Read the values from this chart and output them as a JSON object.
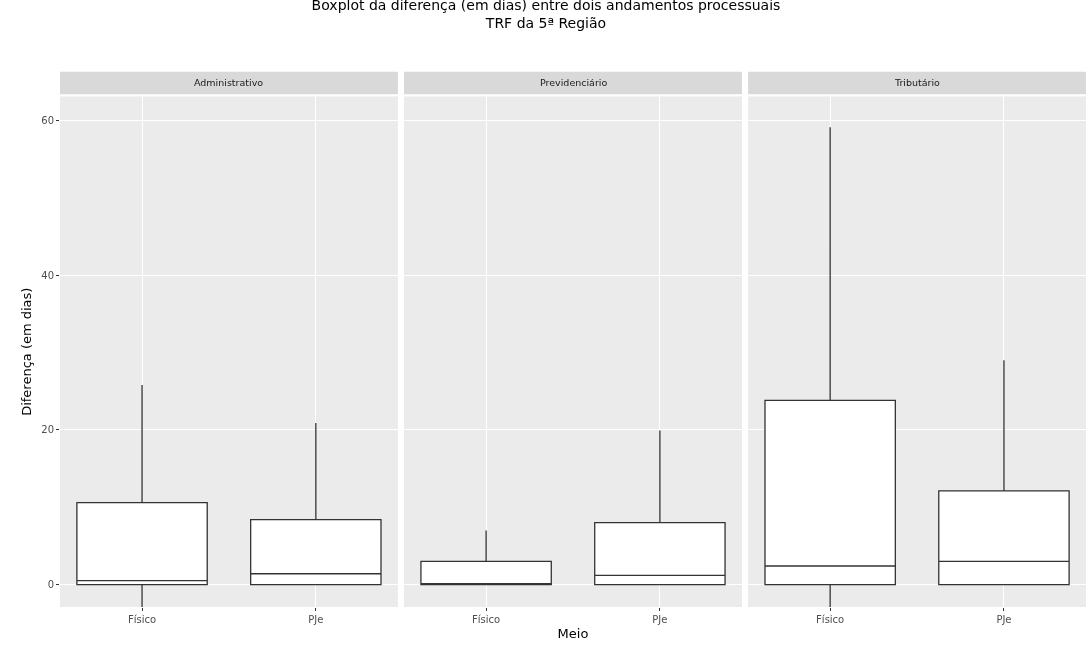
{
  "chart_data": [
    {
      "type": "box",
      "title": "Boxplot da diferença (em dias) entre dois andamentos processuais\nTRF da 5ª Região",
      "subtitle": "Administrativo",
      "ylabel": "Diferença (em dias)",
      "categories": [
        "Físico",
        "PJe"
      ],
      "ylim": [
        -2.9,
        63.1
      ],
      "yticks": [
        0,
        20,
        40,
        60
      ],
      "grid": true,
      "legend": false,
      "boxes": [
        {
          "low": -2.9,
          "q1": 0,
          "median": 0.5,
          "q3": 10.6,
          "high": 25.8
        },
        {
          "low": 0,
          "q1": 0,
          "median": 1.4,
          "q3": 8.4,
          "high": 20.9
        }
      ]
    },
    {
      "type": "box",
      "subtitle": "Previdenciário",
      "xlabel": "Meio",
      "categories": [
        "Físico",
        "PJe"
      ],
      "ylim": [
        -2.9,
        63.1
      ],
      "tick_labels": "x",
      "grid": true,
      "legend": false,
      "boxes": [
        {
          "low": 0,
          "q1": 0,
          "median": 0.1,
          "q3": 3.0,
          "high": 7.0
        },
        {
          "low": 0,
          "q1": 0,
          "median": 1.2,
          "q3": 8.0,
          "high": 19.9
        }
      ]
    },
    {
      "type": "box",
      "subtitle": "Tributário",
      "categories": [
        "Físico",
        "PJe"
      ],
      "ylim": [
        -2.9,
        63.1
      ],
      "tick_labels": "x",
      "grid": true,
      "legend": false,
      "boxes": [
        {
          "low": -2.9,
          "q1": 0,
          "median": 2.4,
          "q3": 23.8,
          "high": 59.1
        },
        {
          "low": 0,
          "q1": 0,
          "median": 3.0,
          "q3": 12.1,
          "high": 29.0
        }
      ]
    }
  ]
}
